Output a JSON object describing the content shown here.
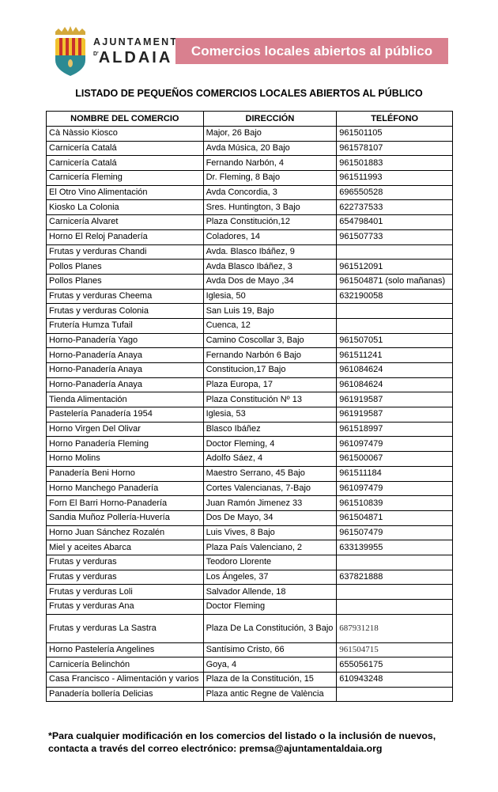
{
  "header": {
    "logo_line1": "AJUNTAMENT",
    "logo_prefix": "D'",
    "logo_line2": "ALDAIA",
    "banner": "Comercios locales abiertos al público",
    "banner_color": "#d9808f"
  },
  "title": "LISTADO DE PEQUEÑOS COMERCIOS LOCALES ABIERTOS AL PÚBLICO",
  "table": {
    "columns": [
      "NOMBRE DEL COMERCIO",
      "DIRECCIÓN",
      "TELÉFONO"
    ],
    "rows": [
      [
        "Cà Nàssio Kiosco",
        "Major, 26 Bajo",
        "961501105"
      ],
      [
        "Carnicería Catalá",
        "Avda Música, 20 Bajo",
        "961578107"
      ],
      [
        "Carnicería Catalá",
        "Fernando Narbón, 4",
        "961501883"
      ],
      [
        "Carnicería Fleming",
        "Dr. Fleming, 8 Bajo",
        "961511993"
      ],
      [
        "El Otro Vino  Alimentación",
        "Avda Concordia, 3",
        "696550528"
      ],
      [
        "Kiosko La Colonia",
        "Sres. Huntington, 3 Bajo",
        "622737533"
      ],
      [
        "Carnicería Alvaret",
        "Plaza Constitución,12",
        "654798401"
      ],
      [
        "Horno El Reloj Panadería",
        "Coladores, 14",
        "961507733"
      ],
      [
        "Frutas y verduras Chandi",
        "Avda. Blasco Ibáñez, 9",
        ""
      ],
      [
        "Pollos Planes",
        "Avda Blasco Ibáñez,  3",
        "961512091"
      ],
      [
        "Pollos Planes",
        "Avda Dos de Mayo ,34",
        "961504871 (solo mañanas)"
      ],
      [
        "Frutas y verduras Cheema",
        "Iglesia, 50",
        "632190058"
      ],
      [
        "Frutas y verduras Colonia",
        "San Luis 19, Bajo",
        ""
      ],
      [
        "Frutería Humza Tufail",
        "Cuenca, 12",
        ""
      ],
      [
        "Horno-Panadería Yago",
        "Camino Coscollar 3, Bajo",
        "961507051"
      ],
      [
        "Horno-Panadería Anaya",
        "Fernando Narbón 6 Bajo",
        "961511241"
      ],
      [
        "Horno-Panadería Anaya",
        "Constitucion,17 Bajo",
        "961084624"
      ],
      [
        "Horno-Panadería Anaya",
        "Plaza Europa, 17",
        "961084624"
      ],
      [
        "Tienda Alimentación",
        "Plaza Constitución Nº 13",
        "961919587"
      ],
      [
        "Pastelería Panadería 1954",
        "Iglesia, 53",
        "961919587"
      ],
      [
        "Horno Virgen Del Olivar",
        "Blasco Ibáñez",
        "961518997"
      ],
      [
        "Horno Panadería Fleming",
        "Doctor Fleming, 4",
        "961097479"
      ],
      [
        "Horno Molins",
        "Adolfo Sáez, 4",
        "961500067"
      ],
      [
        "Panadería Beni Horno",
        "Maestro Serrano, 45 Bajo",
        "961511184"
      ],
      [
        "Horno Manchego Panadería",
        "Cortes Valencianas, 7-Bajo",
        "961097479"
      ],
      [
        "Forn El Barri    Horno-Panadería",
        "Juan Ramón Jimenez 33",
        "961510839"
      ],
      [
        "Sandia Muñoz Pollería-Huvería",
        "Dos De Mayo, 34",
        "961504871"
      ],
      [
        "Horno Juan Sánchez Rozalén",
        "Luis Vives, 8 Bajo",
        "961507479"
      ],
      [
        "Miel y aceites Abarca",
        "Plaza País Valenciano, 2",
        "633139955"
      ],
      [
        "Frutas y verduras",
        "Teodoro Llorente",
        ""
      ],
      [
        "Frutas y verduras",
        "Los Ángeles, 37",
        "637821888"
      ],
      [
        "Frutas y verduras Loli",
        "Salvador Allende, 18",
        ""
      ],
      [
        "Frutas y verduras Ana",
        "Doctor Fleming",
        ""
      ],
      [
        "Frutas y verduras La Sastra",
        "Plaza De La Constitución, 3 Bajo",
        "687931218"
      ],
      [
        "Horno Pastelería Angelines",
        "Santísimo Cristo, 66",
        "961504715"
      ],
      [
        "Carnicería Belinchón",
        "Goya, 4",
        "655056175"
      ],
      [
        "Casa Francisco - Alimentación y varios",
        "Plaza de la Constitución, 15",
        "610943248"
      ],
      [
        "Panadería bollería Delicias",
        "Plaza antic Regne de València",
        ""
      ]
    ]
  },
  "footer": {
    "line1": "*Para cualquier modificación en los comercios del listado o la inclusión de nuevos,",
    "line2": "contacta a través del correo electrónico: premsa@ajuntamentaldaia.org"
  }
}
